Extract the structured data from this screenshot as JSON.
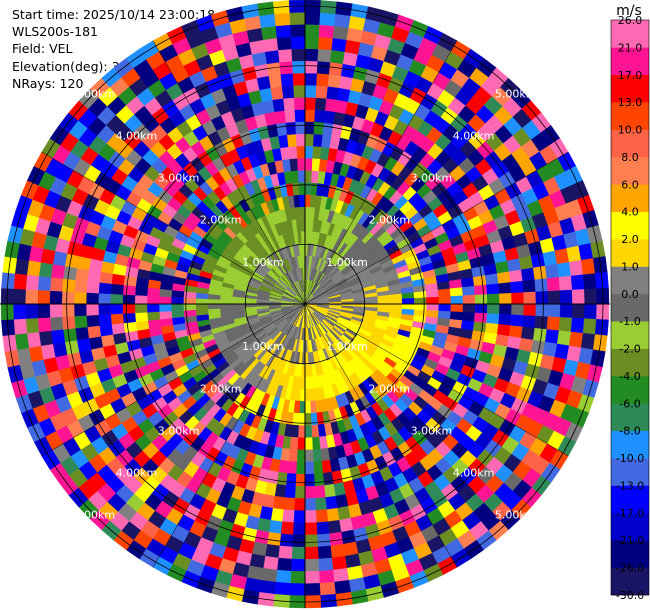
{
  "info": {
    "start_time_label": "Start time:",
    "start_time": "2025/10/14 23:00:18",
    "instrument": "WLS200s-181",
    "field_label": "Field:",
    "field": "VEL",
    "elevation_label": "Elevation(deg):",
    "elevation": "35.00",
    "nrays_label": "NRays:",
    "nrays": "120"
  },
  "chart_data": {
    "type": "heatmap",
    "projection": "polar-ppi",
    "field": "VEL",
    "units": "m/s",
    "n_rays": 120,
    "elevation_deg": 35.0,
    "range_rings_km": [
      1.0,
      2.0,
      3.0,
      4.0,
      5.0
    ],
    "range_ring_labels": [
      "1.00km",
      "2.00km",
      "3.00km",
      "4.00km",
      "5.00km"
    ],
    "max_range_km": 5.1,
    "colorbar": {
      "units": "m/s",
      "bounds": [
        -30.0,
        -26.0,
        -21.0,
        -17.0,
        -13.0,
        -10.0,
        -8.0,
        -6.0,
        -4.0,
        -2.0,
        -1.0,
        0.0,
        1.0,
        2.0,
        4.0,
        6.0,
        8.0,
        10.0,
        13.0,
        17.0,
        21.0,
        26.0
      ],
      "tick_labels": [
        "-30.0",
        "-26.0",
        "-21.0",
        "-17.0",
        "-13.0",
        "-10.0",
        "-8.0",
        "-6.0",
        "-4.0",
        "-2.0",
        "-1.0",
        "0.0",
        "1.0",
        "2.0",
        "4.0",
        "6.0",
        "8.0",
        "10.0",
        "13.0",
        "17.0",
        "21.0",
        "26.0"
      ],
      "colors": [
        "#1a1464",
        "#000080",
        "#0000cd",
        "#0000ff",
        "#4169e1",
        "#1e90ff",
        "#2e8b57",
        "#228b22",
        "#6b8e23",
        "#9acd32",
        "#696969",
        "#808080",
        "#ffd700",
        "#ffff00",
        "#ffa500",
        "#ff7f50",
        "#ff6347",
        "#ff4500",
        "#ff0000",
        "#ff1493",
        "#ff69b4"
      ]
    }
  }
}
